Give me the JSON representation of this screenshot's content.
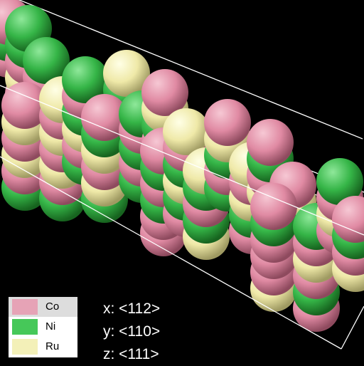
{
  "legend": {
    "items": [
      {
        "label": "Co",
        "color": "#e6a3b6"
      },
      {
        "label": "Ni",
        "color": "#46c859"
      },
      {
        "label": "Ru",
        "color": "#f3f0b8"
      }
    ]
  },
  "axes": {
    "x": "x: <112>",
    "y": "y: <110>",
    "z": "z: <111>"
  },
  "scene": {
    "background": "#000000",
    "box_color": "#ffffff"
  }
}
